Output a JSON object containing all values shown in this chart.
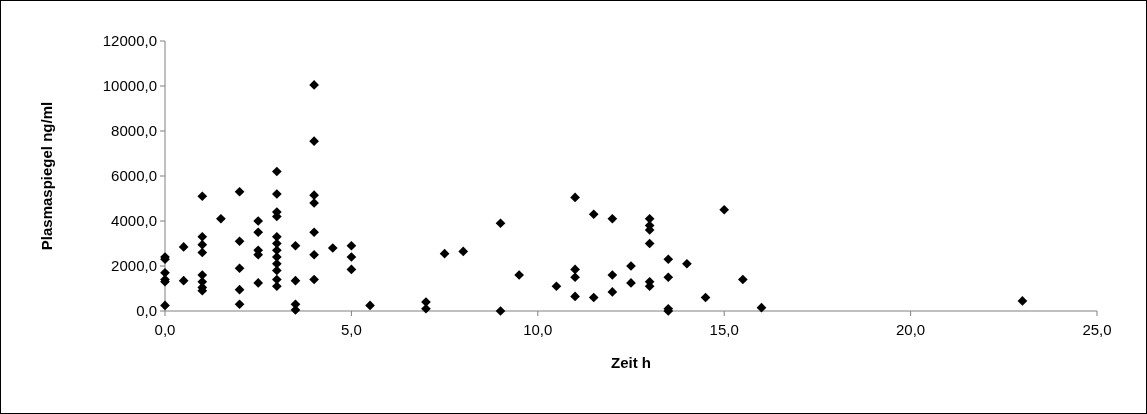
{
  "chart_data": {
    "type": "scatter",
    "xlabel": "Zeit h",
    "ylabel": "Plasmaspiegel ng/ml",
    "marker": "diamond",
    "grid": false,
    "xlim": [
      0,
      25
    ],
    "ylim": [
      0,
      12000
    ],
    "xticks": [
      {
        "value": 0,
        "label": "0,0"
      },
      {
        "value": 5,
        "label": "5,0"
      },
      {
        "value": 10,
        "label": "10,0"
      },
      {
        "value": 15,
        "label": "15,0"
      },
      {
        "value": 20,
        "label": "20,0"
      },
      {
        "value": 25,
        "label": "25,0"
      }
    ],
    "yticks": [
      {
        "value": 0,
        "label": "0,0"
      },
      {
        "value": 2000,
        "label": "2000,0"
      },
      {
        "value": 4000,
        "label": "4000,0"
      },
      {
        "value": 6000,
        "label": "6000,0"
      },
      {
        "value": 8000,
        "label": "8000,0"
      },
      {
        "value": 10000,
        "label": "10000,0"
      },
      {
        "value": 12000,
        "label": "12000,0"
      }
    ],
    "series": [
      {
        "color": "#000000",
        "x": [
          0,
          0,
          0,
          0,
          0,
          0,
          0.5,
          0.5,
          1,
          1,
          1,
          1,
          1,
          1,
          1,
          1,
          1.5,
          2,
          2,
          2,
          2,
          2,
          2.5,
          2.5,
          2.5,
          2.5,
          2.5,
          3,
          3,
          3,
          3,
          3,
          3,
          3,
          3,
          3,
          3,
          3,
          3,
          3.5,
          3.5,
          3.5,
          3.5,
          4,
          4,
          4,
          4,
          4,
          4,
          4,
          4.5,
          5,
          5,
          5,
          5.5,
          7,
          7,
          7.5,
          8,
          9,
          9,
          9.5,
          10.5,
          11,
          11,
          11,
          11,
          11.5,
          11.5,
          12,
          12,
          12,
          12.5,
          12.5,
          13,
          13,
          13,
          13,
          13,
          13,
          13.5,
          13.5,
          13.5,
          13.5,
          14,
          14.5,
          15,
          15.5,
          16,
          23
        ],
        "values": [
          2400,
          2300,
          1700,
          1400,
          1300,
          250,
          2850,
          1350,
          5100,
          3300,
          2950,
          2600,
          1600,
          1300,
          1050,
          900,
          4100,
          5300,
          3100,
          1900,
          950,
          300,
          4000,
          3500,
          2700,
          2500,
          1250,
          6200,
          5200,
          4400,
          4200,
          3300,
          3000,
          2700,
          2400,
          2100,
          1800,
          1400,
          1100,
          2900,
          1350,
          300,
          50,
          10050,
          7550,
          5150,
          4800,
          3500,
          2500,
          1400,
          2800,
          2900,
          2400,
          1850,
          250,
          400,
          100,
          2550,
          2650,
          3900,
          0,
          1600,
          1100,
          5050,
          1850,
          1500,
          650,
          4300,
          600,
          4100,
          1600,
          850,
          2000,
          1250,
          4100,
          3800,
          3600,
          3000,
          1300,
          1100,
          2300,
          1500,
          100,
          0,
          2100,
          600,
          4500,
          1400,
          150,
          450
        ]
      }
    ]
  }
}
